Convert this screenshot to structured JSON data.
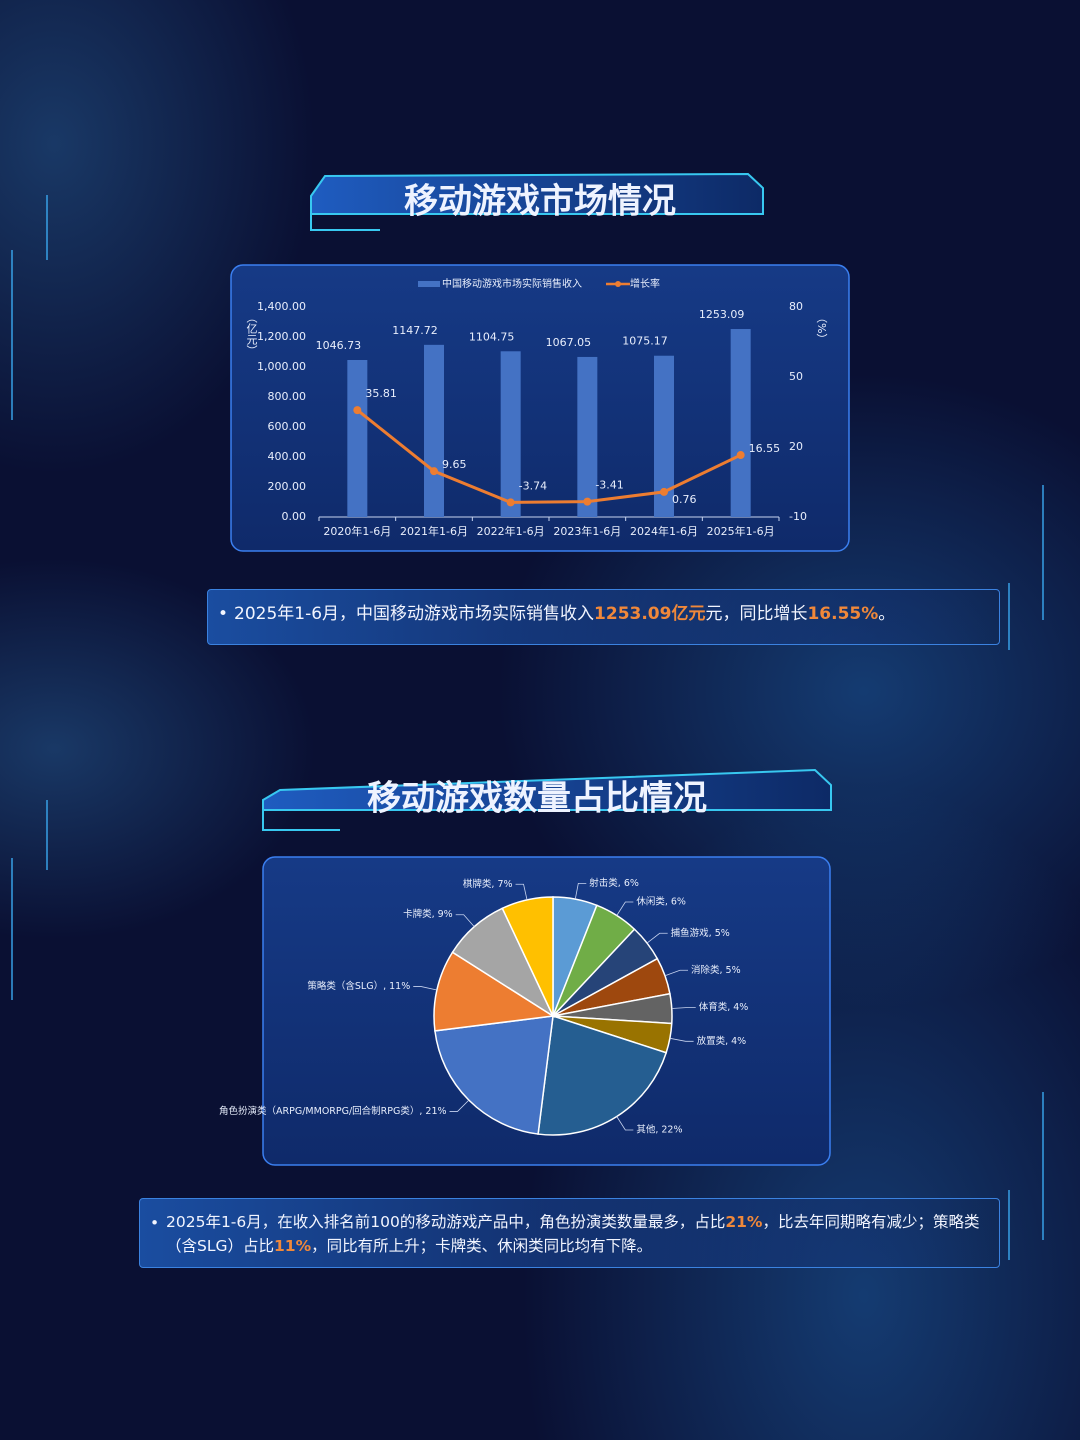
{
  "chart_data": [
    {
      "type": "combo",
      "title": "移动游戏市场情况",
      "categories": [
        "2020年1-6月",
        "2021年1-6月",
        "2022年1-6月",
        "2023年1-6月",
        "2024年1-6月",
        "2025年1-6月"
      ],
      "series": [
        {
          "name": "中国移动游戏市场实际销售收入",
          "type": "bar",
          "color": "#4472c4",
          "values": [
            1046.73,
            1147.72,
            1104.75,
            1067.05,
            1075.17,
            1253.09
          ]
        },
        {
          "name": "增长率",
          "type": "line",
          "axis": "y2",
          "color": "#ed7d31",
          "values": [
            35.81,
            9.65,
            -3.74,
            -3.41,
            0.76,
            16.55
          ]
        }
      ],
      "ylabel": "（亿元）",
      "y2label": "（%）",
      "ylim": [
        0,
        1400
      ],
      "yticks": [
        {
          "value": 0,
          "label": "0.00"
        },
        {
          "value": 200,
          "label": "200.00"
        },
        {
          "value": 400,
          "label": "400.00"
        },
        {
          "value": 600,
          "label": "600.00"
        },
        {
          "value": 800,
          "label": "800.00"
        },
        {
          "value": 1000,
          "label": "1,000.00"
        },
        {
          "value": 1200,
          "label": "1,200.00"
        },
        {
          "value": 1400,
          "label": "1,400.00"
        }
      ],
      "y2lim": [
        -10,
        80
      ],
      "y2ticks": [
        -10,
        20,
        50,
        80
      ],
      "legend": "top",
      "grid": false,
      "note": [
        {
          "text": "2025年1-6月，中国移动游戏市场实际销售收入"
        },
        {
          "text": "1253.09亿元",
          "highlight": true
        },
        {
          "text": "元，同比增长"
        },
        {
          "text": "16.55%",
          "highlight": true
        },
        {
          "text": "。"
        }
      ]
    },
    {
      "type": "pie",
      "title": "移动游戏数量占比情况",
      "labels": [
        "射击类, 6%",
        "休闲类, 6%",
        "捕鱼游戏, 5%",
        "消除类, 5%",
        "体育类, 4%",
        "放置类, 4%",
        "其他, 22%",
        "角色扮演类（ARPG/MMORPG/回合制RPG类）, 21%",
        "策略类（含SLG）, 11%",
        "卡牌类, 9%",
        "棋牌类, 7%"
      ],
      "values": [
        6,
        6,
        5,
        5,
        4,
        4,
        22,
        21,
        11,
        9,
        7
      ],
      "colors": [
        "#5b9bd5",
        "#70ad47",
        "#264478",
        "#9e480e",
        "#636363",
        "#997300",
        "#255e91",
        "#4472c4",
        "#ed7d31",
        "#a5a5a5",
        "#ffc000"
      ],
      "note": [
        {
          "text": "2025年1-6月，在收入排名前100的移动游戏产品中，角色扮演类数量最多，占比"
        },
        {
          "text": "21%",
          "highlight": true
        },
        {
          "text": "，比去年同期略有减少；策略类（含SLG）占比"
        },
        {
          "text": "11%",
          "highlight": true
        },
        {
          "text": "，同比有所上升；卡牌类、休闲类同比均有下降。"
        }
      ]
    }
  ]
}
